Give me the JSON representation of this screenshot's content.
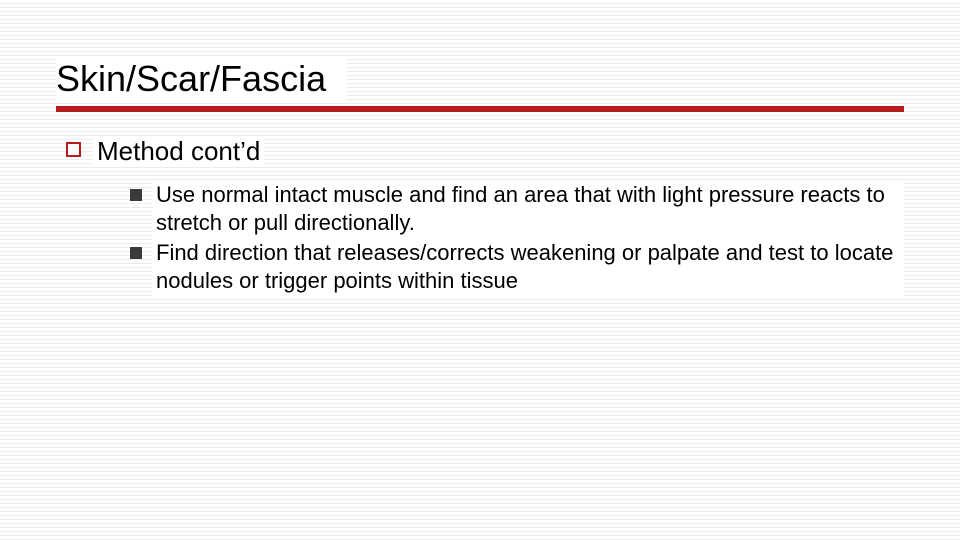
{
  "slide": {
    "title": "Skin/Scar/Fascia",
    "rule_color": "#b71c1c",
    "background_line_color": "#ececec",
    "hollow_bullet_border": "#b71c1c",
    "solid_bullet_color": "#3a3a3a",
    "text_color": "#000000",
    "title_fontsize": 36,
    "level1_fontsize": 26,
    "level2_fontsize": 22,
    "level1": {
      "label": "Method cont’d",
      "items": [
        {
          "text": "Use normal intact muscle and find an area that with light pressure reacts to stretch or pull directionally."
        },
        {
          "text": "Find direction that releases/corrects weakening or palpate and test to locate nodules or trigger points within tissue"
        }
      ]
    }
  }
}
